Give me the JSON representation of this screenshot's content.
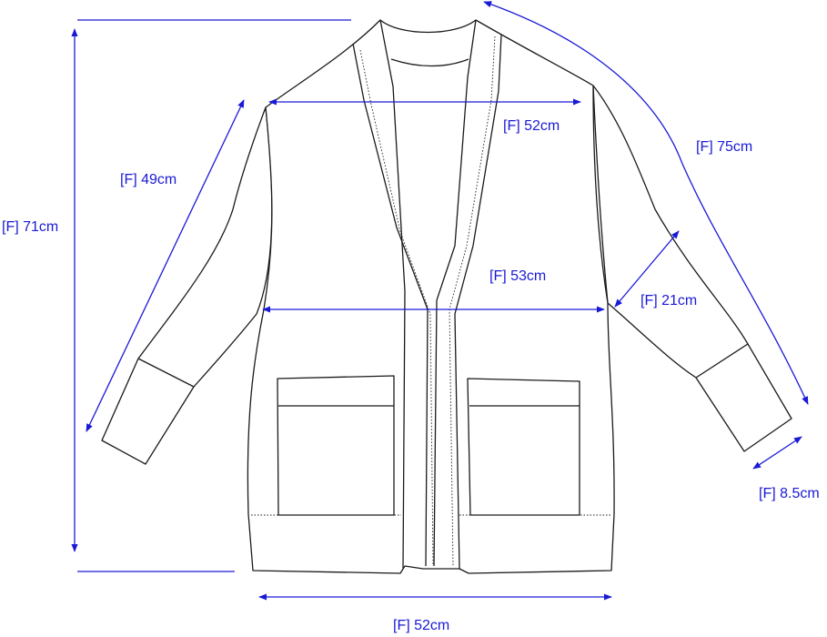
{
  "colors": {
    "dimension": "#1a1ad6",
    "outline": "#1a1a1a"
  },
  "measurements": {
    "shoulder_width": "[F] 52cm",
    "sleeve_length": "[F] 75cm",
    "armhole_sleeve": "[F] 49cm",
    "total_length": "[F] 71cm",
    "chest_width": "[F] 53cm",
    "sleeve_width": "[F] 21cm",
    "cuff_width": "[F] 8.5cm",
    "hem_width": "[F] 52cm"
  }
}
